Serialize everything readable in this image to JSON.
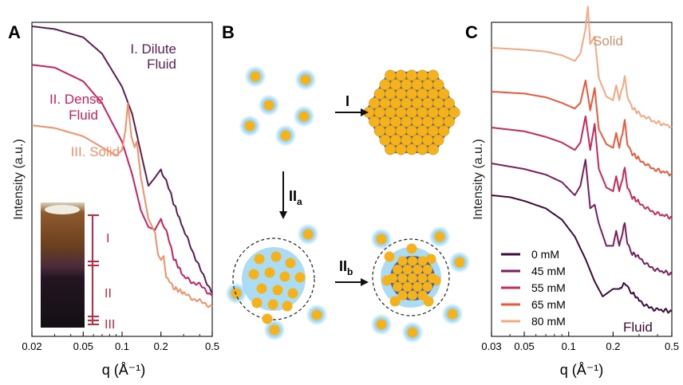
{
  "chart_data": [
    {
      "panel": "A",
      "type": "line",
      "xlabel": "q (Å⁻¹)",
      "ylabel": "Intensity (a.u.)",
      "x_scale": "log",
      "xlim": [
        0.02,
        0.5
      ],
      "x_ticks": [
        "0.02",
        "0.05",
        "0.1",
        "0.2",
        "0.5"
      ],
      "series": [
        {
          "name": "I. Dilute Fluid",
          "color": "#5b1f52",
          "x": [
            0.02,
            0.03,
            0.05,
            0.07,
            0.1,
            0.12,
            0.14,
            0.16,
            0.18,
            0.2,
            0.22,
            0.25,
            0.3,
            0.4,
            0.5
          ],
          "y": [
            1.0,
            0.99,
            0.96,
            0.9,
            0.78,
            0.68,
            0.54,
            0.42,
            0.45,
            0.48,
            0.44,
            0.36,
            0.26,
            0.12,
            0.03
          ]
        },
        {
          "name": "II. Dense Fluid",
          "color": "#c72261",
          "x": [
            0.02,
            0.03,
            0.05,
            0.07,
            0.1,
            0.12,
            0.14,
            0.16,
            0.18,
            0.2,
            0.22,
            0.25,
            0.3,
            0.35,
            0.4,
            0.5
          ],
          "y": [
            0.86,
            0.85,
            0.8,
            0.72,
            0.58,
            0.46,
            0.33,
            0.27,
            0.26,
            0.3,
            0.26,
            0.16,
            0.09,
            0.07,
            0.06,
            0.02
          ]
        },
        {
          "name": "III. Solid",
          "color": "#f2906a",
          "x": [
            0.02,
            0.03,
            0.05,
            0.07,
            0.09,
            0.1,
            0.106,
            0.111,
            0.118,
            0.125,
            0.13,
            0.14,
            0.16,
            0.18,
            0.19,
            0.2,
            0.21,
            0.22,
            0.25,
            0.3,
            0.35,
            0.4,
            0.5
          ],
          "y": [
            0.64,
            0.63,
            0.6,
            0.56,
            0.53,
            0.55,
            0.62,
            0.72,
            0.6,
            0.56,
            0.58,
            0.45,
            0.3,
            0.25,
            0.17,
            0.15,
            0.17,
            0.09,
            0.05,
            0.03,
            0.01,
            0.0,
            -0.02
          ]
        }
      ],
      "inset_labels": [
        "I",
        "II",
        "III"
      ]
    },
    {
      "panel": "B",
      "type": "diagram",
      "labels": {
        "route_I": "I",
        "route_IIa_main": "II",
        "route_IIa_sub": "a",
        "route_IIb_main": "II",
        "route_IIb_sub": "b"
      }
    },
    {
      "panel": "C",
      "type": "line",
      "xlabel": "q (Å⁻¹)",
      "ylabel": "Intensity (a.u.)",
      "x_scale": "log",
      "xlim": [
        0.03,
        0.5
      ],
      "x_ticks": [
        "0.03",
        "0.05",
        "0.1",
        "0.2",
        "0.5"
      ],
      "annotations": [
        "Solid",
        "Fluid"
      ],
      "series": [
        {
          "name": "0 mM",
          "color": "#3d0c3b",
          "x": [
            0.03,
            0.04,
            0.05,
            0.07,
            0.09,
            0.11,
            0.13,
            0.15,
            0.17,
            0.2,
            0.22,
            0.24,
            0.27,
            0.3,
            0.35,
            0.4,
            0.5
          ],
          "y": [
            0.0,
            -0.01,
            -0.03,
            -0.07,
            -0.13,
            -0.22,
            -0.34,
            -0.46,
            -0.54,
            -0.5,
            -0.5,
            -0.47,
            -0.52,
            -0.56,
            -0.6,
            -0.61,
            -0.62
          ]
        },
        {
          "name": "45 mM",
          "color": "#7a1e5e",
          "x": [
            0.03,
            0.05,
            0.07,
            0.09,
            0.11,
            0.12,
            0.13,
            0.14,
            0.15,
            0.16,
            0.18,
            0.2,
            0.21,
            0.22,
            0.24,
            0.25,
            0.27,
            0.3,
            0.35,
            0.4,
            0.5
          ],
          "y": [
            0.0,
            -0.03,
            -0.06,
            -0.1,
            -0.17,
            -0.12,
            0.02,
            -0.24,
            -0.22,
            -0.32,
            -0.44,
            -0.44,
            -0.36,
            -0.44,
            -0.32,
            -0.43,
            -0.48,
            -0.5,
            -0.55,
            -0.57,
            -0.59
          ]
        },
        {
          "name": "55 mM",
          "color": "#c72b5a",
          "x": [
            0.03,
            0.05,
            0.07,
            0.09,
            0.11,
            0.12,
            0.13,
            0.14,
            0.15,
            0.16,
            0.18,
            0.2,
            0.21,
            0.22,
            0.24,
            0.25,
            0.27,
            0.3,
            0.35,
            0.4,
            0.5
          ],
          "y": [
            0.0,
            -0.02,
            -0.05,
            -0.08,
            -0.12,
            -0.08,
            0.06,
            -0.12,
            0.02,
            -0.22,
            -0.32,
            -0.34,
            -0.26,
            -0.34,
            -0.22,
            -0.32,
            -0.37,
            -0.4,
            -0.44,
            -0.46,
            -0.48
          ]
        },
        {
          "name": "65 mM",
          "color": "#e85a3c",
          "x": [
            0.03,
            0.05,
            0.07,
            0.09,
            0.11,
            0.12,
            0.13,
            0.14,
            0.15,
            0.16,
            0.18,
            0.2,
            0.21,
            0.22,
            0.24,
            0.25,
            0.27,
            0.3,
            0.35,
            0.4,
            0.5
          ],
          "y": [
            0.0,
            -0.01,
            -0.03,
            -0.06,
            -0.09,
            -0.06,
            0.06,
            -0.1,
            0.02,
            -0.2,
            -0.28,
            -0.3,
            -0.22,
            -0.3,
            -0.16,
            -0.28,
            -0.33,
            -0.36,
            -0.4,
            -0.42,
            -0.44
          ]
        },
        {
          "name": "80 mM",
          "color": "#f5a882",
          "x": [
            0.03,
            0.05,
            0.07,
            0.09,
            0.11,
            0.12,
            0.13,
            0.135,
            0.14,
            0.15,
            0.16,
            0.18,
            0.2,
            0.21,
            0.22,
            0.24,
            0.25,
            0.27,
            0.3,
            0.35,
            0.4,
            0.5
          ],
          "y": [
            0.0,
            -0.01,
            -0.02,
            -0.04,
            -0.07,
            -0.03,
            0.1,
            0.22,
            0.02,
            0.06,
            -0.16,
            -0.26,
            -0.28,
            -0.2,
            -0.28,
            -0.16,
            -0.26,
            -0.32,
            -0.35,
            -0.38,
            -0.4,
            -0.42
          ]
        }
      ]
    }
  ],
  "panel_letters": {
    "a": "A",
    "b": "B",
    "c": "C"
  },
  "label_text": {
    "a_dilute_1": "I. Dilute",
    "a_dilute_2": "Fluid",
    "a_dense_1": "II. Dense",
    "a_dense_2": "Fluid",
    "a_solid": "III. Solid"
  },
  "colors": {
    "gold": "#f4b31c",
    "blue_halo": "#7cc7ee",
    "cluster_edge": "#3b5aa5",
    "axis": "#222222"
  }
}
